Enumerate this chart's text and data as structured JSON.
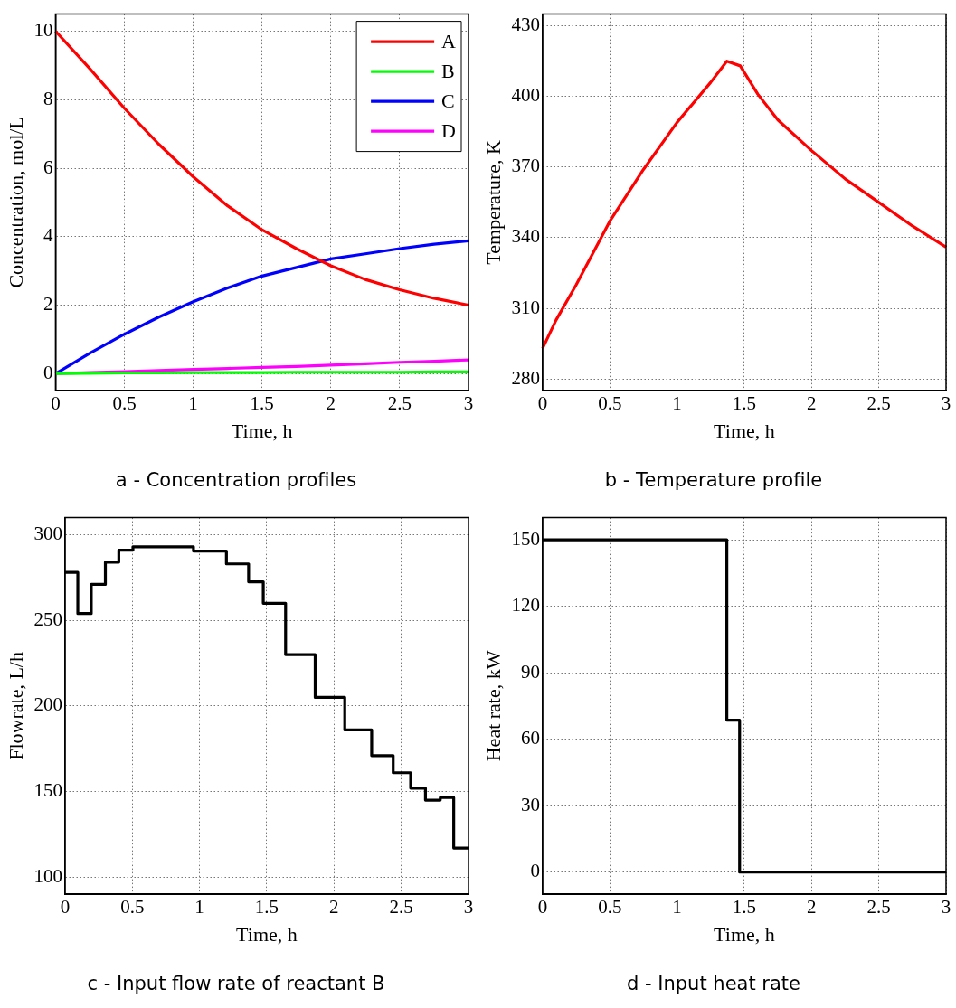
{
  "chart_data": [
    {
      "type": "line",
      "title": "a - Concentration profiles",
      "xlabel": "Time, h",
      "ylabel": "Concentration, mol/L",
      "x": [
        0,
        0.25,
        0.5,
        0.75,
        1,
        1.25,
        1.5,
        1.75,
        2,
        2.25,
        2.5,
        2.75,
        3
      ],
      "series": [
        {
          "name": "A",
          "color": "#ff0000",
          "values": [
            10,
            8.9,
            7.75,
            6.7,
            5.75,
            4.9,
            4.2,
            3.65,
            3.15,
            2.75,
            2.45,
            2.2,
            2.0
          ]
        },
        {
          "name": "B",
          "color": "#00ff00",
          "values": [
            0,
            0.01,
            0.02,
            0.02,
            0.03,
            0.03,
            0.03,
            0.04,
            0.04,
            0.04,
            0.04,
            0.05,
            0.05
          ]
        },
        {
          "name": "C",
          "color": "#0000ff",
          "values": [
            0,
            0.6,
            1.15,
            1.65,
            2.1,
            2.5,
            2.85,
            3.1,
            3.35,
            3.5,
            3.65,
            3.78,
            3.88
          ]
        },
        {
          "name": "D",
          "color": "#ff00ff",
          "values": [
            0,
            0.03,
            0.06,
            0.09,
            0.12,
            0.15,
            0.18,
            0.21,
            0.25,
            0.29,
            0.33,
            0.36,
            0.4
          ]
        }
      ],
      "xlim": [
        0,
        3
      ],
      "ylim": [
        -0.5,
        10.5
      ],
      "xticks": [
        0,
        0.5,
        1,
        1.5,
        2,
        2.5,
        3
      ],
      "yticks": [
        0,
        2,
        4,
        6,
        8,
        10
      ],
      "grid": true,
      "legend": "top right"
    },
    {
      "type": "line",
      "title": "b - Temperature profile",
      "xlabel": "Time, h",
      "ylabel": "Temperature, K",
      "x": [
        0,
        0.1,
        0.25,
        0.5,
        0.75,
        1,
        1.25,
        1.37,
        1.47,
        1.6,
        1.75,
        2,
        2.25,
        2.5,
        2.75,
        3
      ],
      "series": [
        {
          "color": "#ff0000",
          "values": [
            293,
            305,
            320,
            347,
            369,
            389,
            406,
            415,
            413,
            401,
            390,
            377,
            365,
            355,
            345,
            336
          ]
        }
      ],
      "xlim": [
        0,
        3
      ],
      "ylim": [
        275,
        435
      ],
      "xticks": [
        0,
        0.5,
        1,
        1.5,
        2,
        2.5,
        3
      ],
      "yticks": [
        280,
        310,
        340,
        370,
        400,
        430
      ],
      "grid": true
    },
    {
      "type": "step",
      "title": "c - Input flow rate of reactant B",
      "xlabel": "Time, h",
      "ylabel": "Flowrate, L/h",
      "x": [
        0,
        0.095,
        0.195,
        0.3,
        0.4,
        0.505,
        0.955,
        1.2,
        1.365,
        1.474,
        1.64,
        1.86,
        2.08,
        2.28,
        2.44,
        2.57,
        2.68,
        2.79,
        2.89,
        3
      ],
      "series": [
        {
          "color": "#000000",
          "values": [
            278,
            254,
            271,
            284,
            291,
            293,
            290.5,
            283,
            272.5,
            260,
            230,
            205,
            186,
            171,
            161,
            152,
            145,
            146.5,
            117,
            117
          ]
        }
      ],
      "xlim": [
        0,
        3
      ],
      "ylim": [
        90,
        310
      ],
      "xticks": [
        0,
        0.5,
        1,
        1.5,
        2,
        2.5,
        3
      ],
      "yticks": [
        100,
        150,
        200,
        250,
        300
      ],
      "grid": true
    },
    {
      "type": "step",
      "title": "d - Input heat rate",
      "xlabel": "Time, h",
      "ylabel": "Heat rate, kW",
      "x": [
        0,
        1.37,
        1.465,
        3
      ],
      "series": [
        {
          "color": "#000000",
          "values": [
            150,
            68.6,
            0,
            0
          ]
        }
      ],
      "xlim": [
        0,
        3
      ],
      "ylim": [
        -10,
        160
      ],
      "xticks": [
        0,
        0.5,
        1,
        1.5,
        2,
        2.5,
        3
      ],
      "yticks": [
        0,
        30,
        60,
        90,
        120,
        150
      ],
      "grid": true
    }
  ]
}
